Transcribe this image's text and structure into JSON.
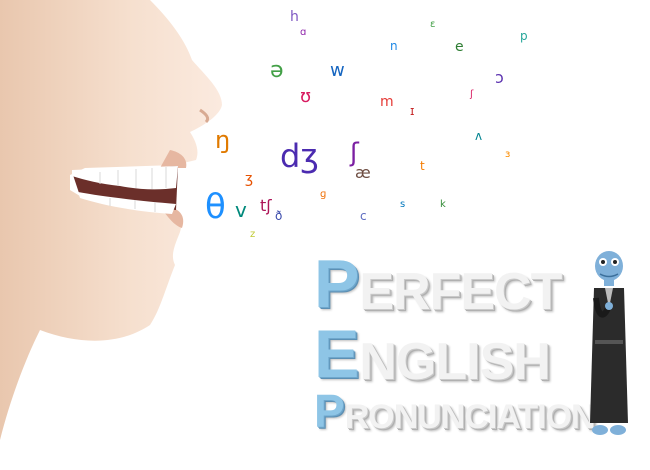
{
  "logo": {
    "line1": {
      "initial": "P",
      "rest": "ERFECT"
    },
    "line2": {
      "initial": "E",
      "rest": "NGLISH"
    },
    "line3": {
      "initial": "P",
      "rest": "RONUNCIATION"
    }
  },
  "colors": {
    "logo_initial": "#8ec5e6",
    "logo_letters": "#f2f2f2",
    "mascot_skin": "#7fb0d9",
    "mascot_robe": "#2b2b2b"
  },
  "illustration": {
    "face": "profile-face-open-mouth",
    "mascot": "blue-lizard-in-black-robe"
  },
  "phonetic_symbols": [
    {
      "ch": "θ",
      "color": "#1e90ff"
    },
    {
      "ch": "dʒ",
      "color": "#4b2bb0"
    },
    {
      "ch": "ŋ",
      "color": "#e07a00"
    },
    {
      "ch": "ʊ",
      "color": "#d81b60"
    },
    {
      "ch": "ʃ",
      "color": "#7b1fa2"
    },
    {
      "ch": "ə",
      "color": "#43a047"
    },
    {
      "ch": "w",
      "color": "#1565c0"
    },
    {
      "ch": "ʒ",
      "color": "#e65100"
    },
    {
      "ch": "v",
      "color": "#00897b"
    },
    {
      "ch": "tʃ",
      "color": "#ad1457"
    },
    {
      "ch": "ð",
      "color": "#3949ab"
    },
    {
      "ch": "æ",
      "color": "#6d4c41"
    },
    {
      "ch": "ɪ",
      "color": "#c62828"
    },
    {
      "ch": "e",
      "color": "#2e7d32"
    },
    {
      "ch": "ʌ",
      "color": "#00838f"
    },
    {
      "ch": "ɔ",
      "color": "#5e35b1"
    },
    {
      "ch": "t",
      "color": "#f57c00"
    },
    {
      "ch": "m",
      "color": "#e53935"
    },
    {
      "ch": "ɑ",
      "color": "#8e24aa"
    },
    {
      "ch": "n",
      "color": "#1e88e5"
    },
    {
      "ch": "ɛ",
      "color": "#43a047"
    },
    {
      "ch": "ɜ",
      "color": "#fb8c00"
    },
    {
      "ch": "p",
      "color": "#26a69a"
    },
    {
      "ch": "ʃ",
      "color": "#d81b60"
    },
    {
      "ch": "c",
      "color": "#5c6bc0"
    },
    {
      "ch": "ɡ",
      "color": "#ef6c00"
    },
    {
      "ch": "k",
      "color": "#388e3c"
    },
    {
      "ch": "h",
      "color": "#7e57c2"
    },
    {
      "ch": "s",
      "color": "#0277bd"
    },
    {
      "ch": "z",
      "color": "#c0ca33"
    }
  ]
}
